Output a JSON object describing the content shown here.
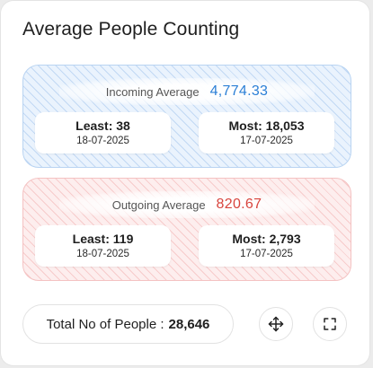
{
  "widget": {
    "title": "Average People Counting"
  },
  "incoming": {
    "label": "Incoming Average",
    "value": "4,774.33",
    "accent_color": "#2b7fd6",
    "least_label": "Least: 38",
    "least_date": "18-07-2025",
    "most_label": "Most: 18,053",
    "most_date": "17-07-2025"
  },
  "outgoing": {
    "label": "Outgoing Average",
    "value": "820.67",
    "accent_color": "#d8453e",
    "least_label": "Least: 119",
    "least_date": "18-07-2025",
    "most_label": "Most: 2,793",
    "most_date": "17-07-2025"
  },
  "footer": {
    "total_label": "Total No of People :",
    "total_value": "28,646",
    "move_icon": "move-arrows-icon",
    "expand_icon": "fullscreen-icon"
  }
}
